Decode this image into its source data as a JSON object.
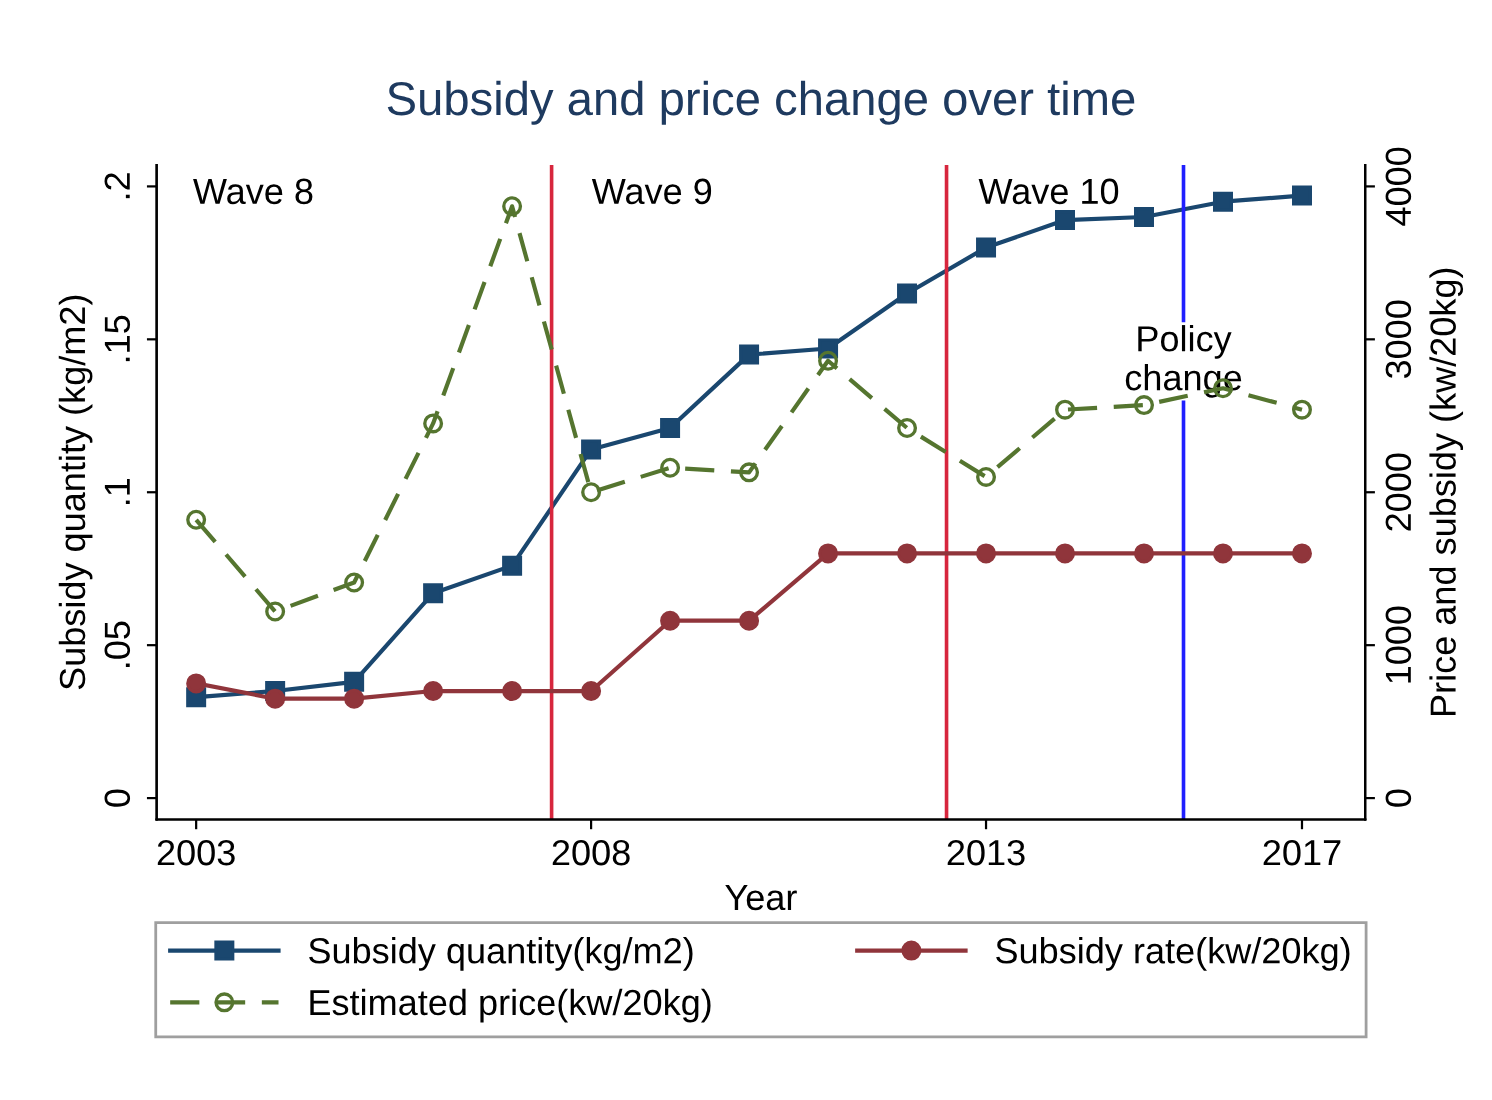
{
  "chart_data": {
    "type": "line",
    "title": "Subsidy and price change over time",
    "xlabel": "Year",
    "ylabel": "Subsidy quantity (kg/m2)",
    "y2label": "Price and subsidy (kw/20kg)",
    "x": [
      2003,
      2004,
      2005,
      2006,
      2007,
      2008,
      2009,
      2010,
      2011,
      2012,
      2013,
      2014,
      2015,
      2016,
      2017
    ],
    "series": [
      {
        "name": "Subsidy quantity(kg/m2)",
        "color": "#1a476f",
        "marker": "square",
        "line_style": "solid",
        "values": [
          0.033,
          0.035,
          0.038,
          0.067,
          0.076,
          0.114,
          0.121,
          0.145,
          0.147,
          0.165,
          0.18,
          0.189,
          0.19,
          0.195,
          0.197
        ]
      },
      {
        "name": "Subsidy rate(kw/20kg)",
        "color": "#90353b",
        "marker": "circle",
        "line_style": "solid",
        "axis": "y2",
        "values": [
          750,
          650,
          650,
          700,
          700,
          700,
          1160,
          1160,
          1600,
          1600,
          1600,
          1600,
          1600,
          1600,
          1600
        ]
      },
      {
        "name": "Estimated price(kw/20kg)",
        "color": "#55752f",
        "marker": "circle",
        "line_style": "dashed",
        "axis": "y2",
        "values": [
          1820,
          1220,
          1410,
          2450,
          3870,
          2000,
          2160,
          2130,
          2860,
          2420,
          2100,
          2540,
          2570,
          2680,
          2540
        ]
      }
    ],
    "xlim": [
      2002.5,
      2017.8
    ],
    "xticks": [
      2003,
      2008,
      2013,
      2017
    ],
    "ylim": [
      -0.007,
      0.207
    ],
    "yticks": [
      0,
      {
        "value": 0.05,
        "label": ".05"
      },
      {
        "value": 0.1,
        "label": ".1"
      },
      {
        "value": 0.15,
        "label": ".15"
      },
      {
        "value": 0.2,
        "label": ".2"
      }
    ],
    "y2lim": [
      -140,
      4140
    ],
    "y2ticks": [
      0,
      1000,
      2000,
      3000,
      4000
    ],
    "ref_lines": [
      {
        "axis": "x",
        "value": 2007.5,
        "color": "#d7263d"
      },
      {
        "axis": "x",
        "value": 2012.5,
        "color": "#d7263d"
      },
      {
        "axis": "x",
        "value": 2015.5,
        "color": "#1f1fff",
        "label": "Policy\nchange"
      }
    ],
    "annotations": [
      "Wave 8",
      "Wave 9",
      "Wave 10"
    ],
    "legend": "bottom",
    "grid": false
  }
}
